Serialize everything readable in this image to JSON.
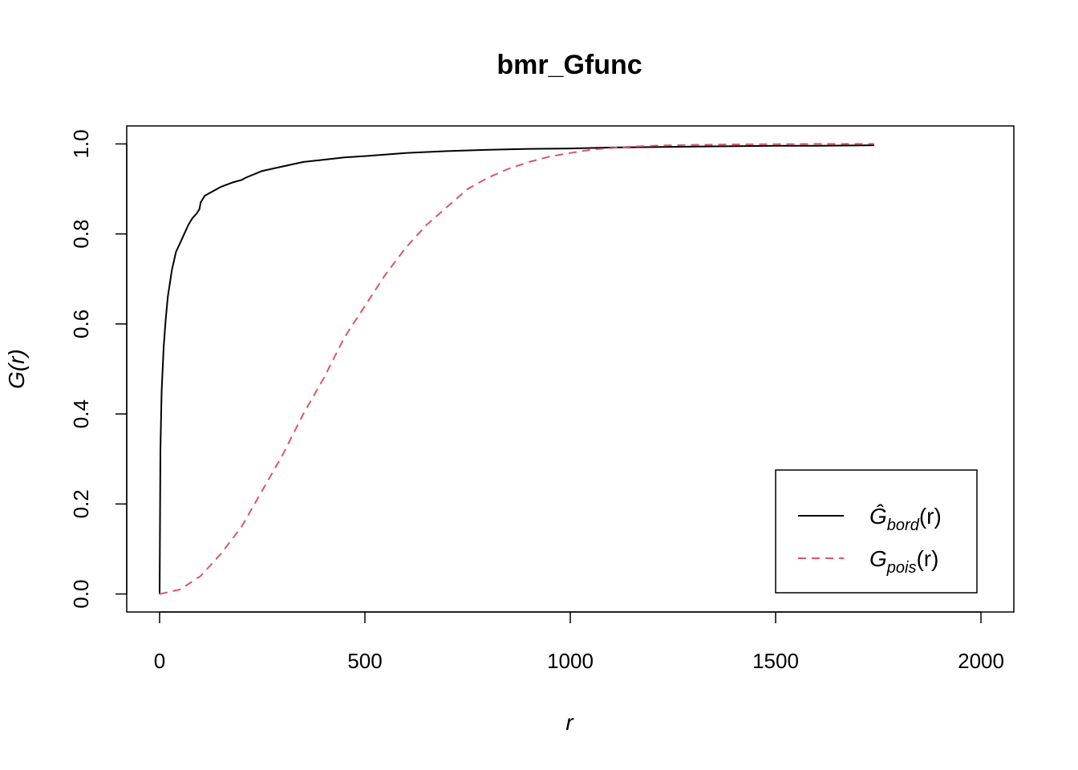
{
  "chart_data": {
    "type": "line",
    "title": "bmr_Gfunc",
    "xlabel": "r",
    "ylabel": "G(r)",
    "xlim": [
      -80,
      2080
    ],
    "ylim": [
      -0.04,
      1.04
    ],
    "xticks": [
      "0",
      "500",
      "1000",
      "1500",
      "2000"
    ],
    "xtick_values": [
      0,
      500,
      1000,
      1500,
      2000
    ],
    "yticks": [
      "0.0",
      "0.2",
      "0.4",
      "0.6",
      "0.8",
      "1.0"
    ],
    "ytick_values": [
      0,
      0.2,
      0.4,
      0.6,
      0.8,
      1.0
    ],
    "grid": false,
    "legend_position": "bottom-right",
    "series": [
      {
        "name": "Ĝ_bord(r)",
        "legend_main": "Ĝ",
        "legend_sub": "bord",
        "legend_tail": "(r)",
        "color": "#000000",
        "dash": "solid",
        "x": [
          0,
          2,
          5,
          10,
          15,
          20,
          30,
          40,
          50,
          60,
          70,
          80,
          90,
          97,
          100,
          110,
          130,
          150,
          180,
          200,
          210,
          250,
          300,
          350,
          400,
          450,
          500,
          600,
          700,
          800,
          900,
          1000,
          1100,
          1200,
          1300,
          1400,
          1500,
          1600,
          1740
        ],
        "y": [
          0.0,
          0.32,
          0.45,
          0.55,
          0.61,
          0.66,
          0.72,
          0.76,
          0.78,
          0.8,
          0.82,
          0.835,
          0.845,
          0.855,
          0.87,
          0.885,
          0.895,
          0.905,
          0.915,
          0.92,
          0.925,
          0.94,
          0.95,
          0.96,
          0.965,
          0.97,
          0.973,
          0.98,
          0.984,
          0.987,
          0.989,
          0.99,
          0.992,
          0.993,
          0.994,
          0.995,
          0.996,
          0.996,
          0.997
        ]
      },
      {
        "name": "G_pois(r)",
        "legend_main": "G",
        "legend_sub": "pois",
        "legend_tail": "(r)",
        "color": "#DF536B",
        "dash": "dashed",
        "x": [
          0,
          50,
          100,
          150,
          200,
          250,
          300,
          350,
          400,
          450,
          500,
          550,
          600,
          650,
          700,
          750,
          800,
          850,
          900,
          950,
          1000,
          1050,
          1100,
          1150,
          1200,
          1300,
          1400,
          1500,
          1600,
          1740
        ],
        "y": [
          0.0,
          0.01,
          0.04,
          0.09,
          0.15,
          0.23,
          0.31,
          0.4,
          0.48,
          0.57,
          0.64,
          0.71,
          0.77,
          0.82,
          0.86,
          0.9,
          0.925,
          0.945,
          0.96,
          0.972,
          0.98,
          0.987,
          0.991,
          0.994,
          0.996,
          0.998,
          0.999,
          0.9995,
          1.0,
          1.0
        ]
      }
    ]
  }
}
